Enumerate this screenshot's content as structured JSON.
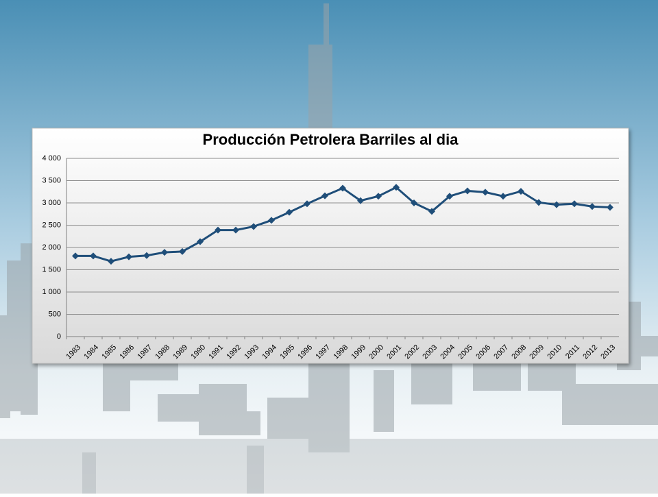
{
  "chart_data": {
    "type": "line",
    "title": "Producción Petrolera Barriles al dia",
    "categories": [
      "1983",
      "1984",
      "1985",
      "1986",
      "1987",
      "1988",
      "1989",
      "1990",
      "1991",
      "1992",
      "1993",
      "1994",
      "1995",
      "1996",
      "1997",
      "1998",
      "1999",
      "2000",
      "2001",
      "2002",
      "2003",
      "2004",
      "2005",
      "2006",
      "2007",
      "2008",
      "2009",
      "2010",
      "2011",
      "2012",
      "2013"
    ],
    "series": [
      {
        "color": "#1f4e79",
        "values": [
          1810,
          1810,
          1690,
          1790,
          1820,
          1890,
          1910,
          2130,
          2390,
          2390,
          2470,
          2610,
          2790,
          2980,
          3160,
          3330,
          3050,
          3150,
          3350,
          3000,
          2810,
          3150,
          3270,
          3240,
          3150,
          3260,
          3010,
          2960,
          2980,
          2920,
          2900
        ]
      }
    ],
    "ylim": [
      0,
      4000
    ],
    "yticks": [
      0,
      500,
      {
        "value": 1000,
        "label": "1 000"
      },
      {
        "value": 1500,
        "label": "1 500"
      },
      {
        "value": 2000,
        "label": "2 000"
      },
      {
        "value": 2500,
        "label": "2 500"
      },
      {
        "value": 3000,
        "label": "3 000"
      },
      {
        "value": 3500,
        "label": "3 500"
      },
      {
        "value": 4000,
        "label": "4 000"
      }
    ],
    "grid": true
  }
}
